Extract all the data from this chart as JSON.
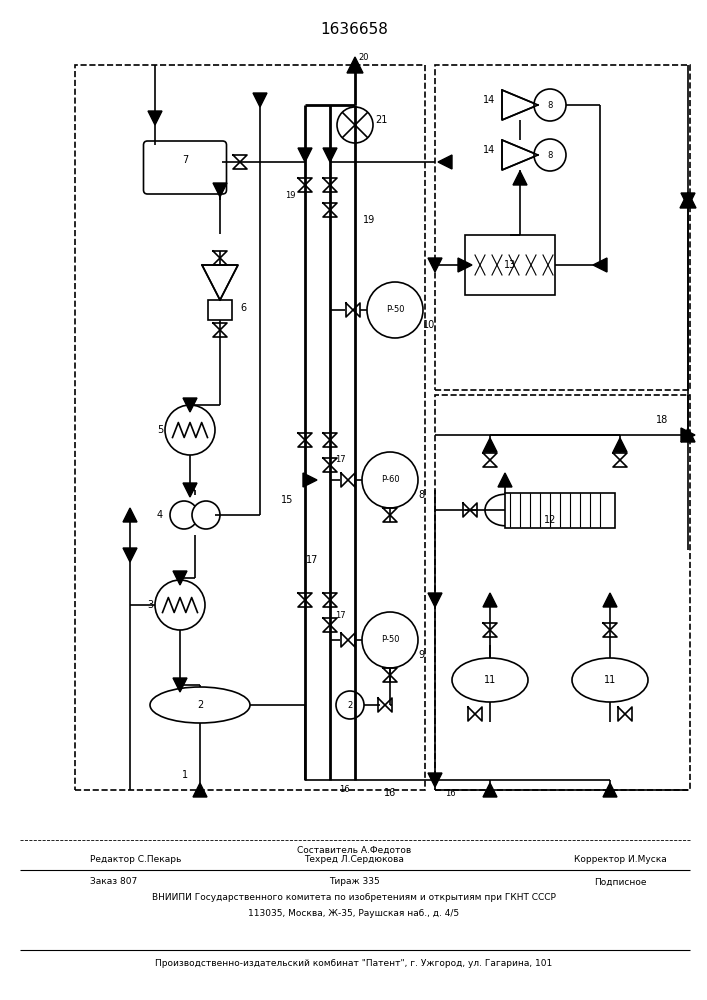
{
  "title": "1636658",
  "bg_color": "#ffffff",
  "line_color": "#000000",
  "footer": {
    "line1_left": "Редактор С.Пекарь",
    "line1_center": "Составитель А.Федотов",
    "line2_left": "Техред Л.Сердюкова",
    "line2_right": "Корректор И.Муска",
    "line3_left": "Заказ 807",
    "line3_center": "Тираж 335",
    "line3_right": "Подписное",
    "line4": "ВНИИПИ Государственного комитета по изобретениям и открытиям при ГКНТ СССР",
    "line5": "113035, Москва, Ж-35, Раушская наб., д. 4/5",
    "line6": "Производственно-издательский комбинат \"Патент\", г. Ужгород, ул. Гагарина, 101"
  }
}
